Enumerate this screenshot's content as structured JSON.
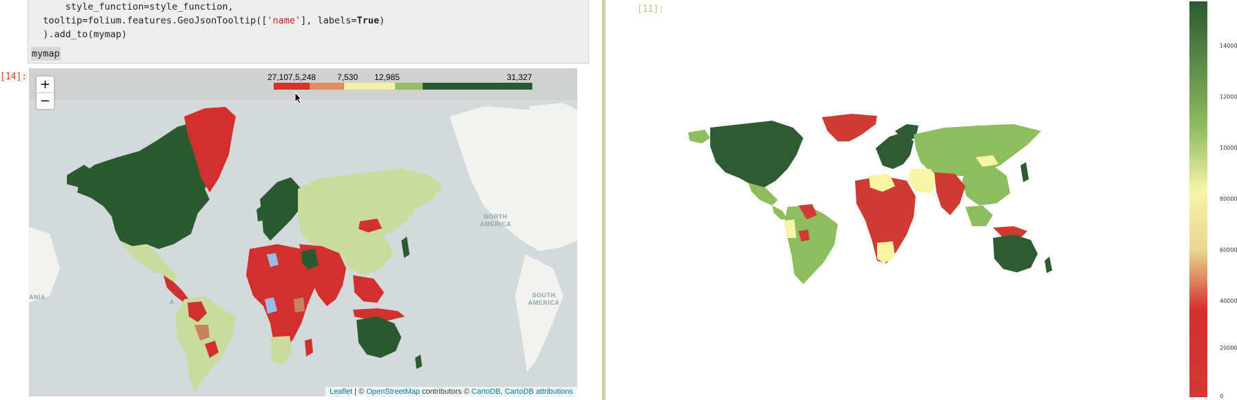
{
  "notebook": {
    "code_lines": [
      "      style_function=style_function,",
      "  tooltip=folium.features.GeoJsonTooltip([",
      "  ).add_to(mymap)"
    ],
    "code_line2_str": "'name'",
    "code_line2_mid": "], labels=",
    "code_line2_bool": "True",
    "code_line2_end": ")",
    "variable": "mymap",
    "left_prompt": "[14]:",
    "right_prompt": "[11]:"
  },
  "leaflet_map": {
    "zoom_in_label": "+",
    "zoom_out_label": "−",
    "legend_ticks": [
      "27,107,5,248",
      "7,530",
      "12,985",
      "31,327"
    ],
    "legend_colors": [
      "#d7302d",
      "#e08d62",
      "#f6f0a4",
      "#94bf65",
      "#2b5a31"
    ],
    "ocean_labels": [
      "NORTH\nAMERICA",
      "SOUTH\nAMERICA",
      "ANIA",
      "A"
    ],
    "attribution": {
      "leaflet": "Leaflet",
      "sep": " | © ",
      "osm": "OpenStreetMap",
      "contributors": " contributors © ",
      "carto": "CartoDB",
      "comma": ", ",
      "carto2": "CartoDB attributions"
    },
    "colors": {
      "ocean": "#d4dadc",
      "land_bg": "#f2f2f0",
      "dark_green": "#2b5a31",
      "light_green": "#c9dc9b",
      "red": "#d2302c",
      "orange": "#c9835c",
      "blue": "#9cbbe4"
    }
  },
  "matplotlib_map": {
    "colorbar_ticks": [
      "140000",
      "120000",
      "100000",
      "80000",
      "60000",
      "40000",
      "20000",
      "0"
    ],
    "colorbar_colors": [
      "#2b5a31",
      "#8fbd5f",
      "#f7f5a5",
      "#e9d58f",
      "#d2302c"
    ],
    "colors": {
      "dark_green": "#2e5b31",
      "green": "#8dbd5d",
      "yellow": "#f7f5a4",
      "red": "#cf3a32"
    }
  }
}
